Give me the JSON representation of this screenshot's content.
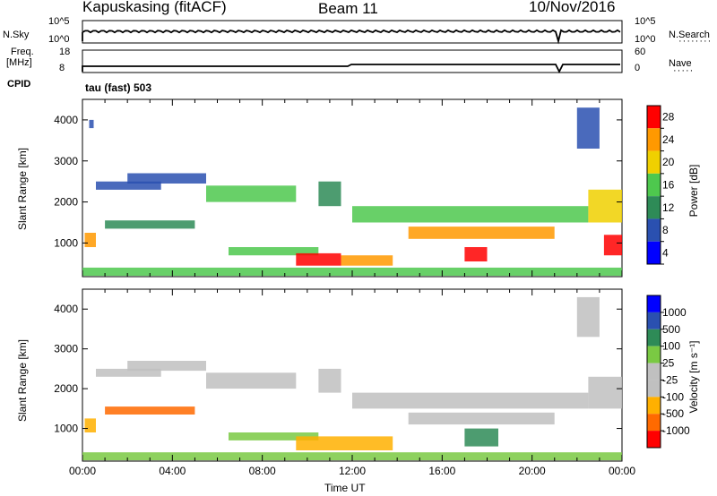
{
  "header": {
    "station": "Kapuskasing (fitACF)",
    "beam": "Beam 11",
    "date": "10/Nov/2016"
  },
  "top_panels": {
    "nsky_label": "N.Sky",
    "nsky_ticks": [
      "10^5",
      "10^0"
    ],
    "nsearch_label": "N.Search",
    "nsearch_ticks": [
      "10^5",
      "10^0"
    ],
    "freq_label": "Freq.",
    "freq_unit": "[MHz]",
    "freq_ticks": [
      "18",
      "8"
    ],
    "nave_label": "Nave",
    "nave_ticks": [
      "60",
      "0"
    ],
    "cpid_label": "CPID",
    "cpid_value": "tau (fast) 503"
  },
  "chart_data": [
    {
      "type": "heatmap",
      "name": "power-panel",
      "ylabel": "Slant Range [km]",
      "yticks": [
        "4000",
        "3000",
        "2000",
        "1000"
      ],
      "ylim": [
        180,
        4500
      ],
      "colorbar_label": "Power [dB]",
      "colorbar_ticks": [
        "28",
        "24",
        "20",
        "16",
        "12",
        "8",
        "4"
      ],
      "colors": [
        "#0000ff",
        "#2a50b0",
        "#2e8b57",
        "#4ec84e",
        "#f0d000",
        "#ff9900",
        "#ff0000"
      ],
      "regions": [
        {
          "t": [
            0.1,
            0.6
          ],
          "r": [
            900,
            1250
          ],
          "level": 5
        },
        {
          "t": [
            0.3,
            0.5
          ],
          "r": [
            3800,
            4000
          ],
          "level": 1
        },
        {
          "t": [
            0.6,
            3.5
          ],
          "r": [
            2300,
            2500
          ],
          "level": 1
        },
        {
          "t": [
            2.0,
            5.5
          ],
          "r": [
            2450,
            2700
          ],
          "level": 1
        },
        {
          "t": [
            5.5,
            9.5
          ],
          "r": [
            2000,
            2400
          ],
          "level": 3
        },
        {
          "t": [
            1.0,
            5.0
          ],
          "r": [
            1350,
            1550
          ],
          "level": 2
        },
        {
          "t": [
            6.5,
            10.5
          ],
          "r": [
            700,
            900
          ],
          "level": 3
        },
        {
          "t": [
            9.5,
            11.5
          ],
          "r": [
            450,
            750
          ],
          "level": 6
        },
        {
          "t": [
            11.5,
            13.8
          ],
          "r": [
            450,
            700
          ],
          "level": 5
        },
        {
          "t": [
            10.5,
            11.5
          ],
          "r": [
            1900,
            2500
          ],
          "level": 2
        },
        {
          "t": [
            12.0,
            22.5
          ],
          "r": [
            1500,
            1900
          ],
          "level": 3
        },
        {
          "t": [
            14.5,
            21.0
          ],
          "r": [
            1100,
            1400
          ],
          "level": 5
        },
        {
          "t": [
            17.0,
            18.0
          ],
          "r": [
            550,
            900
          ],
          "level": 6
        },
        {
          "t": [
            22.5,
            24.0
          ],
          "r": [
            1500,
            2300
          ],
          "level": 4
        },
        {
          "t": [
            22.0,
            23.0
          ],
          "r": [
            3300,
            4300
          ],
          "level": 1
        },
        {
          "t": [
            23.2,
            24.0
          ],
          "r": [
            700,
            1200
          ],
          "level": 6
        },
        {
          "t": [
            0.0,
            24.0
          ],
          "r": [
            200,
            400
          ],
          "level": 3
        }
      ]
    },
    {
      "type": "heatmap",
      "name": "velocity-panel",
      "ylabel": "Slant Range [km]",
      "yticks": [
        "4000",
        "3000",
        "2000",
        "1000"
      ],
      "ylim": [
        180,
        4500
      ],
      "colorbar_label": "Velocity [m s⁻¹]",
      "colorbar_ticks": [
        "1000",
        "500",
        "100",
        "25",
        "-25",
        "-100",
        "-500",
        "-1000"
      ],
      "colors": [
        "#ff0000",
        "#ff6a00",
        "#ffb000",
        "#c0c0c0",
        "#c0c0c0",
        "#7ac943",
        "#2e8b57",
        "#2a50b0",
        "#0000ff"
      ],
      "regions": [
        {
          "t": [
            0.1,
            0.6
          ],
          "r": [
            900,
            1250
          ],
          "level": 2
        },
        {
          "t": [
            0.6,
            3.5
          ],
          "r": [
            2300,
            2500
          ],
          "level": 3
        },
        {
          "t": [
            2.0,
            5.5
          ],
          "r": [
            2450,
            2700
          ],
          "level": 3
        },
        {
          "t": [
            5.5,
            9.5
          ],
          "r": [
            2000,
            2400
          ],
          "level": 3
        },
        {
          "t": [
            1.0,
            5.0
          ],
          "r": [
            1350,
            1550
          ],
          "level": 1
        },
        {
          "t": [
            6.5,
            10.5
          ],
          "r": [
            700,
            900
          ],
          "level": 5
        },
        {
          "t": [
            9.5,
            13.8
          ],
          "r": [
            450,
            800
          ],
          "level": 2
        },
        {
          "t": [
            10.5,
            11.5
          ],
          "r": [
            1900,
            2500
          ],
          "level": 3
        },
        {
          "t": [
            12.0,
            22.5
          ],
          "r": [
            1500,
            1900
          ],
          "level": 3
        },
        {
          "t": [
            14.5,
            21.0
          ],
          "r": [
            1100,
            1400
          ],
          "level": 3
        },
        {
          "t": [
            17.0,
            18.5
          ],
          "r": [
            550,
            1000
          ],
          "level": 6
        },
        {
          "t": [
            22.5,
            24.0
          ],
          "r": [
            1500,
            2300
          ],
          "level": 3
        },
        {
          "t": [
            22.0,
            23.0
          ],
          "r": [
            3300,
            4300
          ],
          "level": 3
        },
        {
          "t": [
            0.0,
            24.0
          ],
          "r": [
            200,
            400
          ],
          "level": 5
        }
      ]
    }
  ],
  "x_axis": {
    "label": "Time UT",
    "ticks": [
      "00:00",
      "04:00",
      "08:00",
      "12:00",
      "16:00",
      "20:00",
      "00:00"
    ]
  }
}
